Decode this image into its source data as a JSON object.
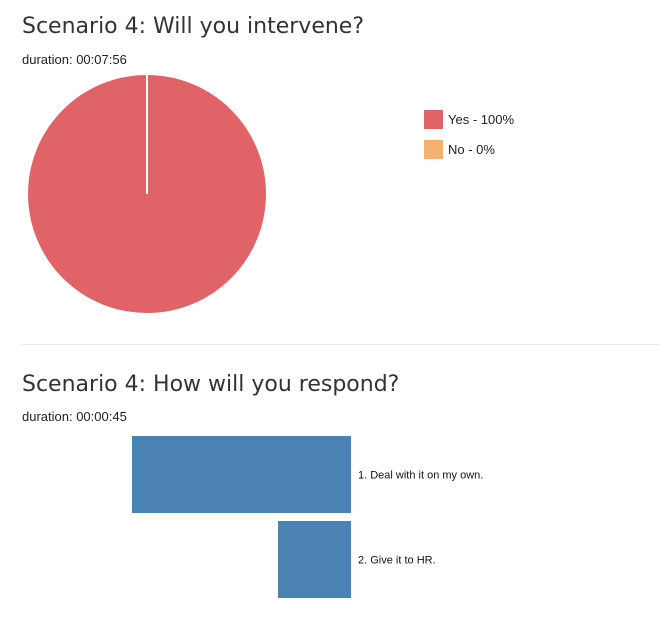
{
  "chart_data": [
    {
      "type": "pie",
      "title": "Scenario 4: Will you intervene?",
      "subtitle": "duration: 00:07:56",
      "categories": [
        "Yes - 100%",
        "No - 0%"
      ],
      "values": [
        100,
        0
      ],
      "colors": [
        "#e06467",
        "#f3b171"
      ],
      "legend_position": "right"
    },
    {
      "type": "bar",
      "orientation": "horizontal",
      "title": "Scenario 4: How will you respond?",
      "subtitle": "duration: 00:00:45",
      "categories": [
        "1. Deal with it on my own.",
        "2. Give it to HR."
      ],
      "values": [
        3,
        1
      ],
      "colors": [
        "#4a83b2"
      ]
    }
  ]
}
